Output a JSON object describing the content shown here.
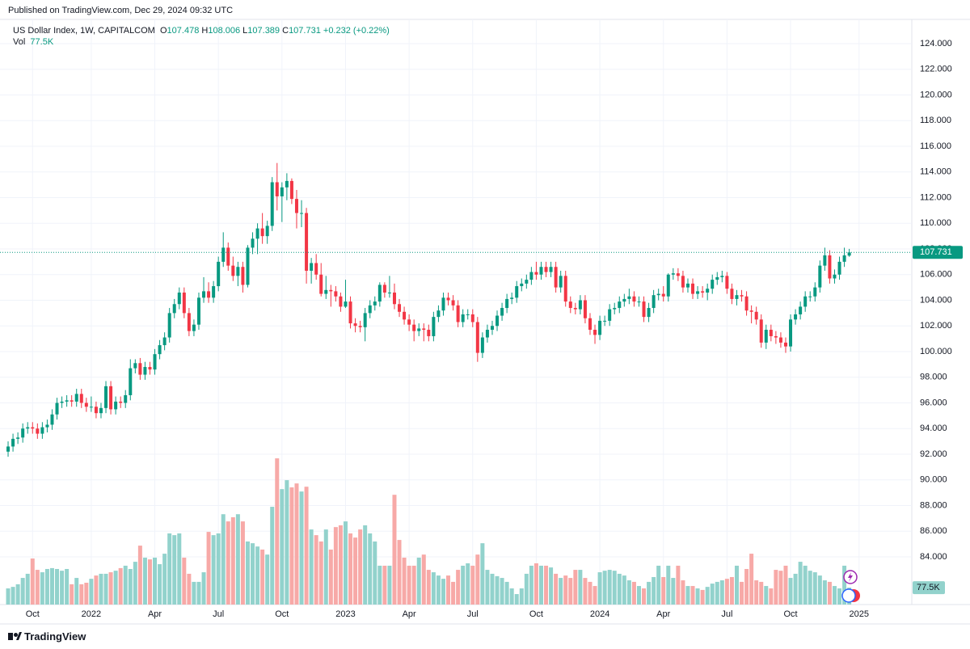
{
  "published": "Published on TradingView.com, Dec 29, 2024 09:32 UTC",
  "brand": "TradingView",
  "chart_data": {
    "type": "candlestick",
    "title": "US Dollar Index, 1W, CAPITALCOM",
    "ohlc_labels": [
      "O",
      "H",
      "L",
      "C"
    ],
    "change": "+0.232",
    "change_pct": "(+0.22%)",
    "volume_name": "Vol",
    "volume_last_label": "77.5K",
    "up_color": "#089981",
    "down_color": "#f23645",
    "volume_up_color": "#92d2cc",
    "volume_down_color": "#f7a9a7",
    "grid": true,
    "ylim": [
      80.28,
      126.02
    ],
    "volume_lim": [
      0,
      700
    ],
    "yticks": [
      {
        "value": 84,
        "label": "84.000"
      },
      {
        "value": 86,
        "label": "86.000"
      },
      {
        "value": 88,
        "label": "88.000"
      },
      {
        "value": 90,
        "label": "90.000"
      },
      {
        "value": 92,
        "label": "92.000"
      },
      {
        "value": 94,
        "label": "94.000"
      },
      {
        "value": 96,
        "label": "96.000"
      },
      {
        "value": 98,
        "label": "98.000"
      },
      {
        "value": 100,
        "label": "100.000"
      },
      {
        "value": 102,
        "label": "102.000"
      },
      {
        "value": 104,
        "label": "104.000"
      },
      {
        "value": 106,
        "label": "106.000"
      },
      {
        "value": 108,
        "label": "108.000"
      },
      {
        "value": 110,
        "label": "110.000"
      },
      {
        "value": 112,
        "label": "112.000"
      },
      {
        "value": 114,
        "label": "114.000"
      },
      {
        "value": 116,
        "label": "116.000"
      },
      {
        "value": 118,
        "label": "118.000"
      },
      {
        "value": 120,
        "label": "120.000"
      },
      {
        "value": 122,
        "label": "122.000"
      },
      {
        "value": 124,
        "label": "124.000"
      }
    ],
    "categories": [
      null,
      null,
      null,
      null,
      null,
      "Oct",
      null,
      null,
      null,
      null,
      null,
      null,
      null,
      null,
      null,
      null,
      null,
      "2022",
      null,
      null,
      null,
      null,
      null,
      null,
      null,
      null,
      null,
      null,
      null,
      null,
      "Apr",
      null,
      null,
      null,
      null,
      null,
      null,
      null,
      null,
      null,
      null,
      null,
      null,
      "Jul",
      null,
      null,
      null,
      null,
      null,
      null,
      null,
      null,
      null,
      null,
      null,
      null,
      "Oct",
      null,
      null,
      null,
      null,
      null,
      null,
      null,
      null,
      null,
      null,
      null,
      null,
      "2023",
      null,
      null,
      null,
      null,
      null,
      null,
      null,
      null,
      null,
      null,
      null,
      null,
      "Apr",
      null,
      null,
      null,
      null,
      null,
      null,
      null,
      null,
      null,
      null,
      null,
      null,
      "Jul",
      null,
      null,
      null,
      null,
      null,
      null,
      null,
      null,
      null,
      null,
      null,
      null,
      "Oct",
      null,
      null,
      null,
      null,
      null,
      null,
      null,
      null,
      null,
      null,
      null,
      null,
      "2024",
      null,
      null,
      null,
      null,
      null,
      null,
      null,
      null,
      null,
      null,
      null,
      null,
      "Apr",
      null,
      null,
      null,
      null,
      null,
      null,
      null,
      null,
      null,
      null,
      null,
      null,
      "Jul",
      null,
      null,
      null,
      null,
      null,
      null,
      null,
      null,
      null,
      null,
      null,
      null,
      "Oct",
      null,
      null,
      null,
      null,
      null,
      null,
      null,
      null,
      null,
      null,
      null,
      null,
      null,
      "2025"
    ],
    "open": [
      92.2,
      92.6,
      93.2,
      93.3,
      94.0,
      94.1,
      94.0,
      93.6,
      94.1,
      94.3,
      95.1,
      96.0,
      96.1,
      96.2,
      96.1,
      96.7,
      96.0,
      95.7,
      95.7,
      95.2,
      95.6,
      97.3,
      95.5,
      96.1,
      96.0,
      96.6,
      98.7,
      99.1,
      98.2,
      98.8,
      98.6,
      99.8,
      100.5,
      101.1,
      103.0,
      103.7,
      104.6,
      103.0,
      101.6,
      102.1,
      104.2,
      104.7,
      104.2,
      105.1,
      107.0,
      108.1,
      106.7,
      105.9,
      106.6,
      105.2,
      108.1,
      108.8,
      109.6,
      109.0,
      109.8,
      113.2,
      112.1,
      112.8,
      113.3,
      111.9,
      110.8,
      110.8,
      106.3,
      106.9,
      106.0,
      104.5,
      104.8,
      104.7,
      104.3,
      103.5,
      103.9,
      102.2,
      102.0,
      101.9,
      103.0,
      103.6,
      103.9,
      105.2,
      104.6,
      104.6,
      103.7,
      103.1,
      102.5,
      102.1,
      101.6,
      101.8,
      101.7,
      101.2,
      102.7,
      103.2,
      104.2,
      104.0,
      103.6,
      102.3,
      102.9,
      102.9,
      102.3,
      99.9,
      101.1,
      101.7,
      102.0,
      102.8,
      103.4,
      104.1,
      104.2,
      105.1,
      105.3,
      105.6,
      106.2,
      106.0,
      106.6,
      106.2,
      106.6,
      105.0,
      105.9,
      103.9,
      103.4,
      103.3,
      104.0,
      102.6,
      101.7,
      101.3,
      102.4,
      102.4,
      103.3,
      103.4,
      103.9,
      104.1,
      104.3,
      103.9,
      103.9,
      102.7,
      103.4,
      104.4,
      104.5,
      104.3,
      106.0,
      106.1,
      105.9,
      105.0,
      105.3,
      104.5,
      104.7,
      104.6,
      104.9,
      105.6,
      105.8,
      105.9,
      104.9,
      104.1,
      104.4,
      104.3,
      103.2,
      103.1,
      102.5,
      100.7,
      101.7,
      101.2,
      101.1,
      100.7,
      100.4,
      102.5,
      102.9,
      103.5,
      104.3,
      104.3,
      105.0,
      106.7,
      107.5,
      105.7,
      106.0,
      107.0,
      107.478,
      null,
      null
    ],
    "high": [
      93.0,
      93.6,
      93.7,
      94.4,
      94.5,
      94.5,
      94.4,
      94.5,
      94.7,
      95.5,
      96.4,
      96.5,
      96.6,
      96.6,
      97.1,
      97.1,
      96.4,
      96.5,
      96.1,
      96.0,
      97.7,
      97.7,
      96.5,
      96.5,
      97.0,
      99.4,
      99.4,
      99.5,
      99.2,
      99.2,
      100.2,
      100.9,
      101.5,
      103.4,
      104.1,
      105.0,
      105.0,
      103.4,
      102.5,
      104.6,
      105.8,
      105.4,
      105.5,
      107.4,
      109.3,
      108.5,
      107.4,
      107.0,
      107.0,
      108.3,
      109.3,
      110.0,
      110.8,
      110.2,
      113.6,
      114.7,
      113.2,
      113.9,
      113.5,
      112.6,
      111.8,
      111.2,
      107.3,
      107.6,
      106.9,
      105.9,
      105.2,
      105.1,
      104.6,
      105.6,
      104.3,
      102.6,
      102.4,
      103.4,
      104.0,
      104.3,
      105.4,
      105.4,
      105.9,
      105.3,
      104.1,
      103.5,
      102.9,
      102.5,
      102.2,
      102.2,
      102.1,
      103.1,
      103.6,
      104.6,
      104.6,
      104.4,
      104.0,
      103.3,
      103.3,
      103.3,
      102.7,
      101.5,
      102.1,
      102.4,
      103.2,
      103.8,
      104.5,
      104.6,
      105.5,
      105.7,
      106.0,
      106.6,
      107.0,
      107.0,
      107.0,
      107.0,
      107.0,
      106.3,
      106.3,
      104.3,
      103.8,
      104.4,
      104.4,
      103.0,
      102.1,
      102.8,
      102.8,
      103.7,
      103.8,
      104.3,
      104.5,
      104.9,
      104.7,
      104.3,
      104.3,
      103.8,
      104.8,
      104.9,
      105.1,
      106.1,
      106.5,
      106.5,
      106.3,
      105.7,
      105.7,
      105.1,
      105.1,
      105.3,
      106.0,
      106.2,
      106.3,
      106.2,
      105.3,
      104.8,
      104.8,
      104.7,
      103.6,
      103.5,
      102.9,
      102.1,
      102.1,
      101.6,
      101.5,
      101.1,
      102.9,
      103.3,
      103.9,
      104.7,
      104.7,
      105.4,
      107.1,
      108.1,
      107.9,
      106.4,
      107.4,
      108.1,
      108.006,
      null,
      null
    ],
    "low": [
      91.8,
      92.2,
      92.8,
      92.9,
      93.6,
      93.6,
      93.2,
      93.2,
      93.7,
      93.9,
      94.7,
      95.6,
      95.7,
      95.7,
      95.7,
      95.6,
      95.3,
      95.3,
      94.8,
      94.8,
      95.2,
      95.1,
      95.1,
      95.6,
      95.6,
      96.2,
      98.3,
      97.8,
      97.8,
      98.2,
      98.2,
      99.4,
      100.1,
      100.7,
      102.6,
      103.3,
      102.6,
      101.2,
      101.2,
      101.7,
      103.8,
      103.8,
      103.8,
      104.7,
      106.6,
      106.3,
      105.5,
      105.1,
      104.6,
      105.0,
      107.6,
      107.6,
      108.4,
      108.4,
      109.4,
      111.0,
      110.1,
      111.8,
      111.5,
      109.6,
      109.7,
      105.3,
      105.3,
      105.6,
      104.3,
      104.1,
      103.5,
      103.9,
      103.1,
      103.4,
      101.8,
      101.5,
      101.5,
      100.8,
      102.6,
      103.2,
      103.5,
      104.2,
      104.2,
      103.3,
      102.7,
      102.1,
      101.6,
      100.8,
      101.2,
      100.8,
      100.8,
      100.8,
      102.3,
      102.8,
      103.6,
      103.2,
      101.9,
      101.9,
      102.5,
      101.9,
      99.2,
      99.5,
      100.7,
      101.3,
      101.6,
      102.4,
      103.0,
      103.7,
      103.8,
      104.7,
      104.9,
      105.2,
      105.6,
      105.6,
      105.8,
      105.8,
      104.6,
      104.6,
      103.5,
      103.0,
      102.9,
      102.9,
      102.2,
      101.3,
      100.6,
      100.9,
      102.0,
      102.0,
      102.9,
      103.0,
      103.5,
      103.7,
      103.5,
      103.5,
      102.3,
      102.3,
      103.0,
      104.0,
      103.9,
      103.9,
      105.6,
      105.5,
      104.6,
      104.6,
      104.1,
      104.1,
      104.2,
      104.0,
      104.5,
      105.2,
      105.4,
      104.5,
      103.7,
      103.6,
      103.9,
      102.8,
      102.2,
      102.1,
      100.3,
      100.2,
      100.8,
      100.6,
      100.3,
      99.9,
      100.0,
      102.1,
      102.5,
      103.1,
      103.9,
      103.9,
      104.6,
      106.3,
      105.3,
      105.3,
      105.6,
      106.6,
      107.389,
      null,
      null
    ],
    "close": [
      92.6,
      93.2,
      93.3,
      94.0,
      94.1,
      94.0,
      93.6,
      94.1,
      94.3,
      95.1,
      96.0,
      96.1,
      96.2,
      96.1,
      96.7,
      96.0,
      95.7,
      95.7,
      95.2,
      95.6,
      97.3,
      95.5,
      96.1,
      96.0,
      96.6,
      98.7,
      99.1,
      98.2,
      98.8,
      98.6,
      99.8,
      100.5,
      101.1,
      103.0,
      103.7,
      104.6,
      103.0,
      101.6,
      102.1,
      104.2,
      104.7,
      104.2,
      105.1,
      107.0,
      108.1,
      106.7,
      105.9,
      106.6,
      105.2,
      108.1,
      108.8,
      109.6,
      109.0,
      109.8,
      113.2,
      112.1,
      112.8,
      113.3,
      111.9,
      110.8,
      110.8,
      106.3,
      106.9,
      106.0,
      104.5,
      104.8,
      104.7,
      104.3,
      103.5,
      103.9,
      102.2,
      102.0,
      101.9,
      103.0,
      103.6,
      103.9,
      105.2,
      104.6,
      104.6,
      103.7,
      103.1,
      102.5,
      102.1,
      101.6,
      101.8,
      101.7,
      101.2,
      102.7,
      103.2,
      104.2,
      104.0,
      103.6,
      102.3,
      102.9,
      102.9,
      102.3,
      99.9,
      101.1,
      101.7,
      102.0,
      102.8,
      103.4,
      104.1,
      104.2,
      105.1,
      105.3,
      105.6,
      106.2,
      106.0,
      106.6,
      106.2,
      106.6,
      105.0,
      105.9,
      103.9,
      103.4,
      103.3,
      104.0,
      102.6,
      101.7,
      101.3,
      102.4,
      102.4,
      103.3,
      103.4,
      103.9,
      104.1,
      104.3,
      103.9,
      103.9,
      102.7,
      103.4,
      104.4,
      104.5,
      104.3,
      106.0,
      106.1,
      105.9,
      105.0,
      105.3,
      104.5,
      104.7,
      104.6,
      104.9,
      105.6,
      105.8,
      105.9,
      104.9,
      104.1,
      104.4,
      104.3,
      103.2,
      103.1,
      102.5,
      100.7,
      101.7,
      101.2,
      101.1,
      100.7,
      100.4,
      102.5,
      102.9,
      103.5,
      104.3,
      104.3,
      105.0,
      106.7,
      107.5,
      105.7,
      106.0,
      107.0,
      107.5,
      107.731,
      null,
      null
    ],
    "volume": [
      74,
      81,
      93,
      122,
      141,
      211,
      159,
      148,
      163,
      167,
      163,
      155,
      163,
      93,
      122,
      93,
      100,
      118,
      133,
      141,
      141,
      148,
      155,
      167,
      178,
      163,
      196,
      270,
      215,
      207,
      215,
      185,
      233,
      326,
      318,
      326,
      215,
      141,
      104,
      104,
      148,
      333,
      318,
      326,
      414,
      381,
      400,
      414,
      381,
      289,
      281,
      266,
      252,
      229,
      448,
      670,
      529,
      570,
      537,
      555,
      518,
      540,
      344,
      318,
      289,
      344,
      252,
      355,
      363,
      381,
      326,
      307,
      344,
      363,
      326,
      289,
      178,
      178,
      178,
      503,
      296,
      215,
      178,
      178,
      215,
      229,
      159,
      148,
      133,
      118,
      133,
      104,
      159,
      178,
      189,
      178,
      229,
      281,
      159,
      141,
      130,
      122,
      104,
      74,
      48,
      74,
      141,
      178,
      189,
      178,
      178,
      170,
      141,
      122,
      133,
      122,
      159,
      159,
      122,
      104,
      85,
      148,
      155,
      159,
      155,
      141,
      133,
      111,
      104,
      85,
      74,
      104,
      126,
      178,
      126,
      178,
      122,
      178,
      111,
      85,
      85,
      74,
      67,
      81,
      96,
      104,
      111,
      118,
      126,
      178,
      104,
      163,
      233,
      111,
      104,
      85,
      74,
      159,
      155,
      178,
      122,
      141,
      196,
      178,
      155,
      148,
      133,
      111,
      104,
      85,
      74,
      178,
      77.5,
      null,
      null
    ]
  }
}
